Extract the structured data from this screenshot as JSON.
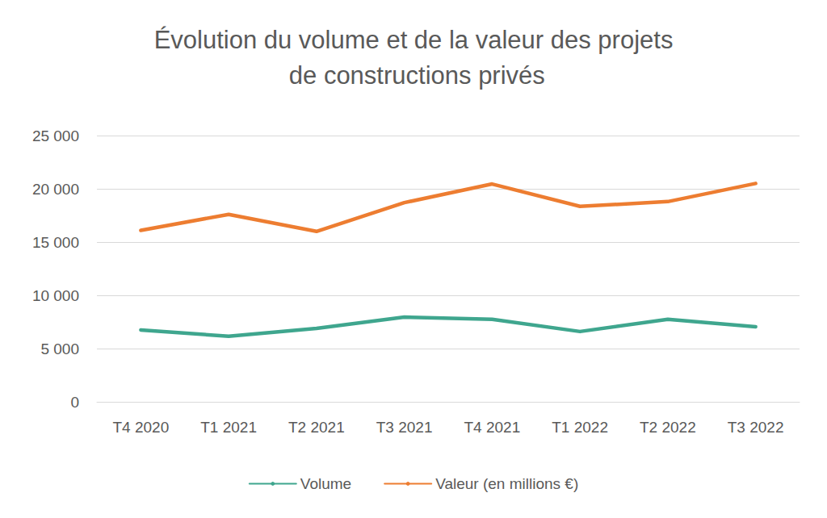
{
  "chart_data": {
    "type": "line",
    "title": "Évolution du volume et de la valeur des projets de constructions privés",
    "categories": [
      "T4 2020",
      "T1 2021",
      "T2 2021",
      "T3 2021",
      "T4 2021",
      "T1 2022",
      "T2 2022",
      "T3 2022"
    ],
    "series": [
      {
        "name": "Volume",
        "color": "#3fa68e",
        "values": [
          6750,
          6150,
          6900,
          7950,
          7750,
          6600,
          7750,
          7050
        ]
      },
      {
        "name": "Valeur (en millions €)",
        "color": "#ed7d31",
        "values": [
          16100,
          17600,
          16000,
          18700,
          20450,
          18350,
          18800,
          20500
        ]
      }
    ],
    "ylim": [
      0,
      25000
    ],
    "yticks": [
      0,
      {
        "value": 5000,
        "label": "5 000"
      },
      {
        "value": 10000,
        "label": "10 000"
      },
      {
        "value": 15000,
        "label": "15 000"
      },
      {
        "value": 20000,
        "label": "20 000"
      },
      {
        "value": 25000,
        "label": "25 000"
      }
    ],
    "grid": true,
    "legend": "bottom"
  }
}
